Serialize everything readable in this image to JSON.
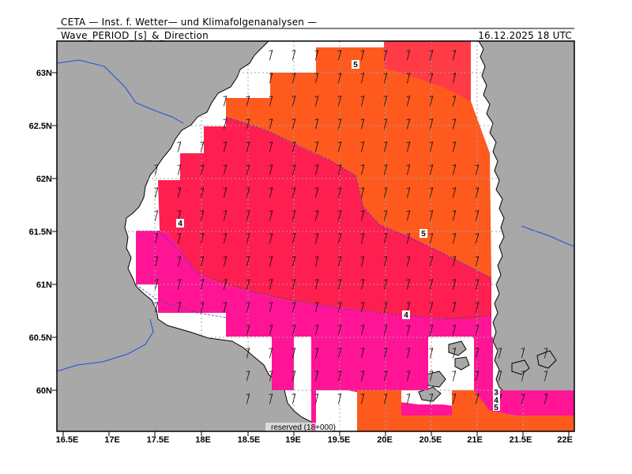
{
  "header": {
    "institute": "CETA — Inst. f. Wetter— und Klimafolgenanalysen —",
    "product": "Wave_PERIOD_[s]_&_Direction",
    "valid_time": "16.12.2025  18 UTC"
  },
  "footer": {
    "run_info": "reserved (18+000)"
  },
  "axes": {
    "lon_labels": [
      "16.5E",
      "17E",
      "17.5E",
      "18E",
      "18.5E",
      "19E",
      "19.5E",
      "20E",
      "20.5E",
      "21E",
      "21.5E",
      "22E"
    ],
    "lat_labels": [
      "63N",
      "62.5N",
      "62N",
      "61.5N",
      "61N",
      "60.5N",
      "60N"
    ],
    "lon_range": [
      16.5,
      22.1
    ],
    "lat_range": [
      59.6,
      63.3
    ]
  },
  "contour_labels": [
    "5",
    "5",
    "4",
    "4",
    "3",
    "4",
    "5"
  ],
  "colors": {
    "land": "#a8a8a8",
    "coast": "#000000",
    "border": "#1a50dc",
    "period_5_plus": "#ff5a1e",
    "period_4_5": "#ff1e50",
    "period_3_4": "#ff1496",
    "period_far_north": "#ff3c46",
    "grid": "#a0a0a0"
  },
  "wave_direction": "arrows pointing north-northeast across the basin"
}
